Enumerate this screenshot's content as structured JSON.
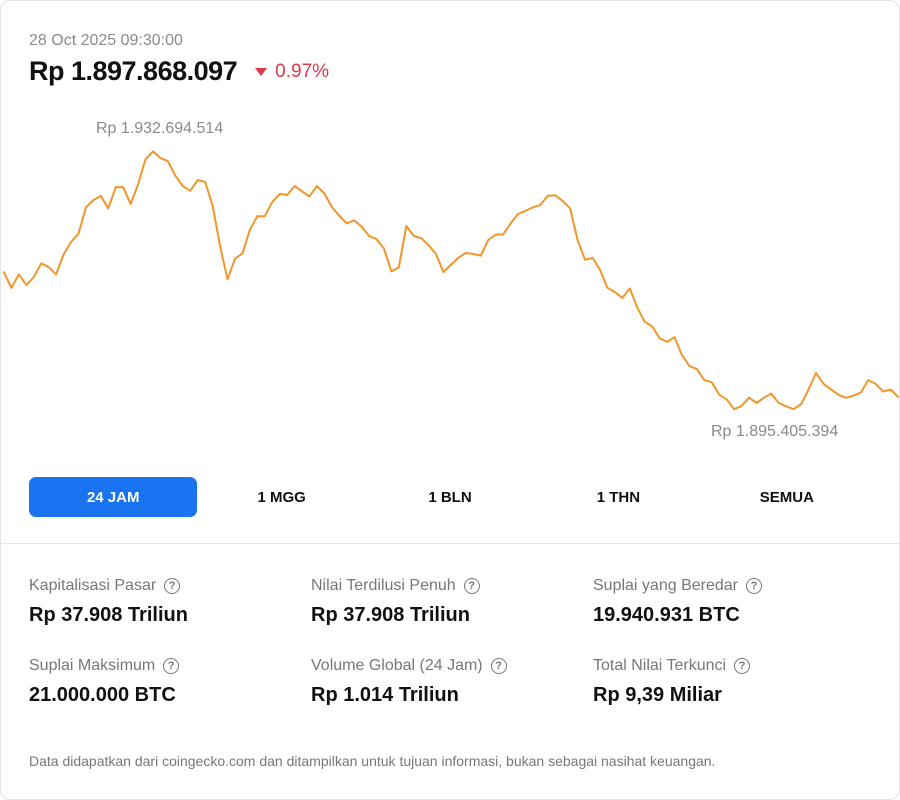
{
  "header": {
    "timestamp": "28 Oct 2025 09:30:00",
    "price": "Rp 1.897.868.097",
    "change": "0.97%",
    "change_direction": "down",
    "change_color": "#e0384b"
  },
  "chart": {
    "high_label": "Rp 1.932.694.514",
    "low_label": "Rp 1.895.405.394",
    "line_color": "#f0962a"
  },
  "chart_data": {
    "type": "line",
    "title": "",
    "xlabel": "",
    "ylabel": "",
    "grid": false,
    "legend": "none",
    "ylim": [
      1895000000,
      1933500000
    ],
    "series": [
      {
        "values": [
          1915450000,
          1913300000,
          1915160000,
          1913670000,
          1914800000,
          1916670000,
          1916160000,
          1915160000,
          1917890000,
          1919610000,
          1920760000,
          1924370000,
          1925370000,
          1925950000,
          1924220000,
          1927160000,
          1927160000,
          1924850000,
          1927530000,
          1930980000,
          1932070000,
          1931150000,
          1930720000,
          1928710000,
          1927300000,
          1926650000,
          1928130000,
          1927860000,
          1924650000,
          1919030000,
          1914490000,
          1917320000,
          1918030000,
          1921300000,
          1923160000,
          1923160000,
          1925080000,
          1926230000,
          1926080000,
          1927300000,
          1926590000,
          1925870000,
          1927300000,
          1926280000,
          1924440000,
          1923210000,
          1922160000,
          1922590000,
          1921730000,
          1920440000,
          1920010000,
          1918720000,
          1915590000,
          1916100000,
          1921810000,
          1920440000,
          1920140000,
          1919170000,
          1917950000,
          1915470000,
          1916510000,
          1917460000,
          1918100000,
          1917960000,
          1917740000,
          1919870000,
          1920620000,
          1920660000,
          1922170000,
          1923460000,
          1923890000,
          1924390000,
          1924720000,
          1925950000,
          1926030000,
          1925230000,
          1924220000,
          1919810000,
          1917160000,
          1917430000,
          1915810000,
          1913300000,
          1912730000,
          1911930000,
          1913230000,
          1910590000,
          1908660000,
          1908020000,
          1906380000,
          1905870000,
          1906520000,
          1904080000,
          1902570000,
          1902140000,
          1900630000,
          1900340000,
          1898620000,
          1897980000,
          1896620000,
          1897050000,
          1898200000,
          1897480000,
          1898190000,
          1898760000,
          1897480000,
          1897020000,
          1896620000,
          1897330000,
          1899340000,
          1901620000,
          1900120000,
          1899340000,
          1898620000,
          1898190000,
          1898480000,
          1898910000,
          1900630000,
          1900120000,
          1899050000,
          1899330000,
          1898330000
        ]
      }
    ]
  },
  "tabs": [
    {
      "label": "24 JAM",
      "active": true
    },
    {
      "label": "1 MGG",
      "active": false
    },
    {
      "label": "1 BLN",
      "active": false
    },
    {
      "label": "1 THN",
      "active": false
    },
    {
      "label": "SEMUA",
      "active": false
    }
  ],
  "stats": [
    {
      "label": "Kapitalisasi Pasar",
      "value": "Rp 37.908 Triliun"
    },
    {
      "label": "Nilai Terdilusi Penuh",
      "value": "Rp 37.908 Triliun"
    },
    {
      "label": "Suplai yang Beredar",
      "value": "19.940.931 BTC"
    },
    {
      "label": "Suplai Maksimum",
      "value": "21.000.000 BTC"
    },
    {
      "label": "Volume Global (24 Jam)",
      "value": "Rp 1.014 Triliun"
    },
    {
      "label": "Total Nilai Terkunci",
      "value": "Rp 9,39 Miliar"
    }
  ],
  "help_icon_glyph": "?",
  "disclaimer": "Data didapatkan dari coingecko.com dan ditampilkan untuk tujuan informasi, bukan sebagai nasihat keuangan."
}
